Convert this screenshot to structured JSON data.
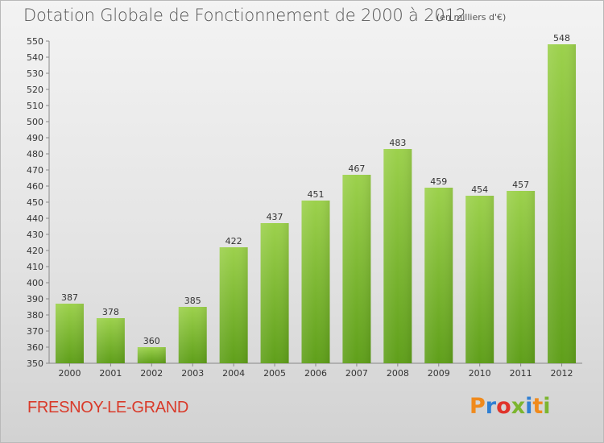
{
  "chart_data": {
    "type": "bar",
    "title": "Dotation Globale de Fonctionnement de 2000 à 2012",
    "subtitle": "(en milliers d'€)",
    "categories": [
      "2000",
      "2001",
      "2002",
      "2003",
      "2004",
      "2005",
      "2006",
      "2007",
      "2008",
      "2009",
      "2010",
      "2011",
      "2012"
    ],
    "values": [
      387,
      378,
      360,
      385,
      422,
      437,
      451,
      467,
      483,
      459,
      454,
      457,
      548
    ],
    "data_labels": [
      "387",
      "378",
      "360",
      "385",
      "422",
      "437",
      "451",
      "467",
      "483",
      "459",
      "454",
      "457",
      "548"
    ],
    "ylim": [
      350,
      550
    ],
    "yticks": [
      350,
      360,
      370,
      380,
      390,
      400,
      410,
      420,
      430,
      440,
      450,
      460,
      470,
      480,
      490,
      500,
      510,
      520,
      530,
      540,
      550
    ],
    "xlabel": "",
    "ylabel": "",
    "grid": false,
    "bar_color_top": "#9cd14c",
    "bar_color_bottom": "#5f9f1a"
  },
  "footer": {
    "commune": "FRESNOY-LE-GRAND",
    "logo": "Proxiti",
    "logo_colors": [
      "#f08a1c",
      "#2f7fd3",
      "#e0342b",
      "#7cb52f",
      "#2f7fd3",
      "#f08a1c",
      "#7cb52f"
    ]
  }
}
